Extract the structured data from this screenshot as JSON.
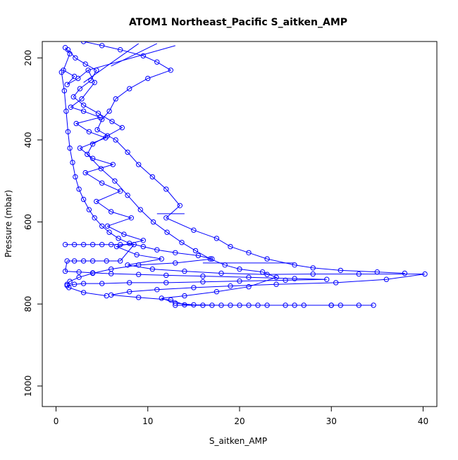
{
  "chart_data": {
    "type": "scatter",
    "title": "ATOM1 Northeast_Pacific S_aitken_AMP",
    "xlabel": "S_aitken_AMP",
    "ylabel": "Pressure (mbar)",
    "xlim": [
      -1.5,
      41.5
    ],
    "ylim": [
      1050,
      160
    ],
    "y_reversed": true,
    "x_ticks": [
      0,
      10,
      20,
      30,
      40
    ],
    "x_tick_labels": [
      "0",
      "10",
      "20",
      "30",
      "40"
    ],
    "y_ticks": [
      200,
      400,
      600,
      800,
      1000
    ],
    "y_tick_labels": [
      "200",
      "400",
      "600",
      "800",
      "1000"
    ],
    "grid": false,
    "legend": "none",
    "marker": "open-circle",
    "connected": true,
    "series_color": "#0000ff",
    "series": [
      {
        "points": [
          [
            1.0,
            175
          ],
          [
            1.5,
            190
          ],
          [
            0.8,
            230
          ],
          [
            2.0,
            245
          ],
          [
            1.2,
            265
          ],
          [
            2.4,
            250
          ],
          [
            3.5,
            230
          ],
          [
            4.2,
            260
          ],
          [
            2.8,
            300
          ],
          [
            1.6,
            320
          ],
          [
            3.0,
            330
          ],
          [
            4.8,
            345
          ],
          [
            2.2,
            360
          ],
          [
            3.6,
            380
          ],
          [
            5.4,
            395
          ],
          [
            2.6,
            420
          ],
          [
            4.0,
            445
          ],
          [
            6.2,
            460
          ],
          [
            3.2,
            480
          ],
          [
            5.0,
            505
          ],
          [
            7.0,
            525
          ],
          [
            4.4,
            550
          ],
          [
            6.0,
            575
          ],
          [
            8.2,
            590
          ],
          [
            5.6,
            610
          ],
          [
            7.4,
            630
          ],
          [
            9.5,
            645
          ],
          [
            6.6,
            660
          ],
          [
            8.8,
            680
          ],
          [
            11.5,
            690
          ],
          [
            7.8,
            705
          ],
          [
            10.5,
            715
          ],
          [
            14.0,
            720
          ],
          [
            18.0,
            725
          ],
          [
            23.0,
            728
          ],
          [
            28.0,
            727
          ],
          [
            33.0,
            727
          ],
          [
            40.2,
            727
          ],
          [
            36.0,
            740
          ],
          [
            30.5,
            748
          ],
          [
            24.0,
            752
          ],
          [
            19.0,
            756
          ],
          [
            15.0,
            760
          ],
          [
            11.0,
            765
          ],
          [
            8.0,
            770
          ],
          [
            6.0,
            778
          ],
          [
            9.0,
            784
          ],
          [
            12.5,
            790
          ],
          [
            14.0,
            802
          ],
          [
            18.0,
            803
          ],
          [
            22.0,
            803
          ],
          [
            26.0,
            803
          ],
          [
            30.0,
            803
          ],
          [
            34.6,
            803
          ],
          [
            30.0,
            803
          ],
          [
            25.0,
            803
          ],
          [
            20.0,
            803
          ],
          [
            16.0,
            803
          ],
          [
            13.0,
            803
          ]
        ]
      },
      {
        "points": [
          [
            0.6,
            235
          ],
          [
            0.9,
            280
          ],
          [
            1.1,
            330
          ],
          [
            1.3,
            380
          ],
          [
            1.5,
            420
          ],
          [
            1.8,
            455
          ],
          [
            2.1,
            490
          ],
          [
            2.5,
            520
          ],
          [
            3.0,
            545
          ],
          [
            3.6,
            570
          ],
          [
            4.2,
            590
          ],
          [
            5.0,
            610
          ],
          [
            5.8,
            625
          ],
          [
            6.8,
            640
          ],
          [
            8.0,
            652
          ],
          [
            9.5,
            660
          ],
          [
            11.0,
            668
          ],
          [
            13.0,
            675
          ],
          [
            15.5,
            682
          ],
          [
            17.0,
            690
          ],
          [
            13.0,
            700
          ],
          [
            9.0,
            705
          ],
          [
            6.0,
            715
          ],
          [
            4.0,
            725
          ],
          [
            2.5,
            735
          ],
          [
            1.5,
            745
          ],
          [
            1.2,
            752
          ],
          [
            1.4,
            760
          ],
          [
            3.0,
            772
          ],
          [
            5.5,
            780
          ]
        ]
      },
      {
        "points": [
          [
            1.0,
            655
          ],
          [
            2.0,
            655
          ],
          [
            3.0,
            655
          ],
          [
            4.0,
            655
          ],
          [
            5.0,
            655
          ],
          [
            6.0,
            655
          ],
          [
            7.0,
            655
          ],
          [
            8.5,
            655
          ],
          [
            7.0,
            695
          ],
          [
            5.5,
            695
          ],
          [
            4.0,
            695
          ],
          [
            3.0,
            695
          ],
          [
            2.0,
            695
          ],
          [
            1.2,
            695
          ],
          [
            1.0,
            720
          ],
          [
            2.5,
            722
          ],
          [
            4.0,
            724
          ],
          [
            6.0,
            726
          ],
          [
            9.0,
            728
          ],
          [
            12.0,
            730
          ],
          [
            16.0,
            732
          ],
          [
            21.0,
            735
          ],
          [
            26.0,
            738
          ],
          [
            29.5,
            740
          ],
          [
            25.0,
            742
          ],
          [
            20.0,
            744
          ],
          [
            16.0,
            746
          ],
          [
            12.0,
            748
          ],
          [
            8.0,
            748
          ],
          [
            5.0,
            750
          ],
          [
            3.0,
            750
          ],
          [
            2.0,
            752
          ],
          [
            1.2,
            755
          ]
        ]
      },
      {
        "points": [
          [
            3.0,
            160
          ],
          [
            5.0,
            170
          ],
          [
            7.0,
            180
          ],
          [
            9.5,
            195
          ],
          [
            11.0,
            210
          ],
          [
            12.5,
            230
          ],
          [
            10.0,
            250
          ],
          [
            8.0,
            275
          ],
          [
            6.5,
            300
          ],
          [
            5.8,
            330
          ],
          [
            5.0,
            350
          ],
          [
            4.5,
            375
          ],
          [
            6.5,
            400
          ],
          [
            7.8,
            430
          ],
          [
            9.0,
            460
          ],
          [
            10.5,
            490
          ],
          [
            12.0,
            520
          ],
          [
            13.5,
            560
          ],
          [
            12.0,
            590
          ],
          [
            15.0,
            620
          ],
          [
            17.5,
            640
          ],
          [
            19.0,
            660
          ],
          [
            21.0,
            675
          ],
          [
            23.0,
            690
          ],
          [
            26.0,
            705
          ],
          [
            28.0,
            712
          ],
          [
            31.0,
            718
          ],
          [
            35.0,
            722
          ],
          [
            38.0,
            725
          ]
        ]
      },
      {
        "points": [
          [
            1.3,
            180
          ],
          [
            2.1,
            200
          ],
          [
            3.2,
            215
          ],
          [
            4.4,
            230
          ],
          [
            3.8,
            255
          ],
          [
            2.6,
            275
          ],
          [
            1.9,
            295
          ],
          [
            3.0,
            315
          ],
          [
            4.6,
            335
          ],
          [
            6.1,
            355
          ],
          [
            7.2,
            370
          ],
          [
            5.6,
            390
          ],
          [
            4.0,
            410
          ],
          [
            3.4,
            435
          ],
          [
            4.9,
            470
          ],
          [
            6.4,
            500
          ],
          [
            7.8,
            535
          ],
          [
            9.2,
            570
          ],
          [
            10.6,
            600
          ],
          [
            12.1,
            625
          ],
          [
            13.7,
            650
          ],
          [
            15.2,
            670
          ],
          [
            16.8,
            690
          ],
          [
            18.4,
            705
          ],
          [
            20.0,
            715
          ],
          [
            22.5,
            722
          ],
          [
            24.0,
            735
          ],
          [
            21.0,
            758
          ],
          [
            17.5,
            770
          ],
          [
            14.0,
            780
          ],
          [
            11.5,
            786
          ],
          [
            13.0,
            798
          ],
          [
            15.0,
            802
          ],
          [
            17.0,
            803
          ],
          [
            19.0,
            803
          ],
          [
            21.0,
            803
          ],
          [
            23.0,
            803
          ],
          [
            27.0,
            803
          ],
          [
            31.0,
            803
          ],
          [
            33.0,
            803
          ]
        ]
      }
    ],
    "extra_segments": [
      [
        [
          3.0,
          260
        ],
        [
          9.0,
          165
        ]
      ],
      [
        [
          6.0,
          220
        ],
        [
          11.0,
          165
        ]
      ],
      [
        [
          3.5,
          230
        ],
        [
          13.0,
          170
        ]
      ],
      [
        [
          11.0,
          580
        ],
        [
          14.0,
          580
        ]
      ],
      [
        [
          16.0,
          700
        ],
        [
          26.0,
          700
        ]
      ]
    ]
  }
}
